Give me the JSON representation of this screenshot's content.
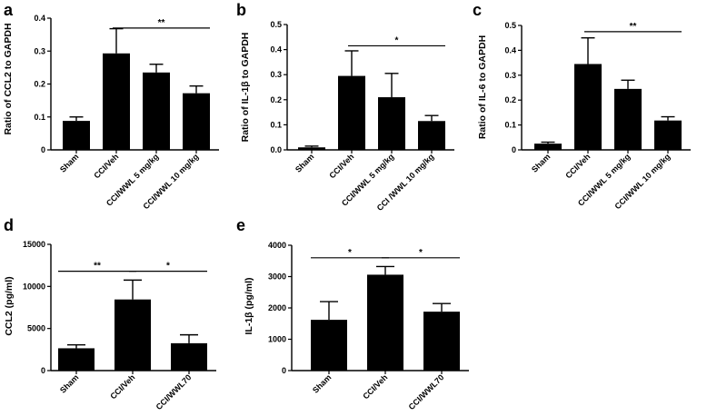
{
  "chart_data": [
    {
      "id": "a",
      "type": "bar",
      "panel_label": "a",
      "ylabel": "Ratio of CCL2 to GAPDH",
      "categories": [
        "Sham",
        "CCI/Veh",
        "CCI/WWL 5 mg/kg",
        "CCI/WWL 10 mg/kg"
      ],
      "values": [
        0.088,
        0.293,
        0.235,
        0.172
      ],
      "errors": [
        0.012,
        0.075,
        0.025,
        0.022
      ],
      "ylim": [
        0,
        0.4
      ],
      "yticks": [
        0,
        0.1,
        0.2,
        0.3,
        0.4
      ],
      "ytick_labels": [
        "0",
        "0.1",
        "0.2",
        "0.3",
        "0.4"
      ],
      "bar_color": "#000000",
      "significance": [
        {
          "from": 1,
          "to": 3,
          "label": "**",
          "y": 0.37
        }
      ]
    },
    {
      "id": "b",
      "type": "bar",
      "panel_label": "b",
      "ylabel": "Ratio of IL-1β to GAPDH",
      "categories": [
        "Sham",
        "CCI/Veh",
        "CCI/WWL 5 mg/kg",
        "CCI /WWL 10 mg/kg"
      ],
      "values": [
        0.01,
        0.295,
        0.21,
        0.115
      ],
      "errors": [
        0.005,
        0.1,
        0.095,
        0.022
      ],
      "ylim": [
        0,
        0.5
      ],
      "yticks": [
        0,
        0.1,
        0.2,
        0.3,
        0.4,
        0.5
      ],
      "ytick_labels": [
        "0.0",
        "0.1",
        "0.2",
        "0.3",
        "0.4",
        "0.5"
      ],
      "bar_color": "#000000",
      "significance": [
        {
          "from": 1,
          "to": 3,
          "label": "*",
          "y": 0.415
        }
      ]
    },
    {
      "id": "c",
      "type": "bar",
      "panel_label": "c",
      "ylabel": "Ratio of IL-6 to GAPDH",
      "categories": [
        "Sham",
        "CCI/Veh",
        "CCI/WWL 5 mg/kg",
        "CCI/WWL 10 mg/kg"
      ],
      "values": [
        0.025,
        0.345,
        0.245,
        0.118
      ],
      "errors": [
        0.006,
        0.105,
        0.035,
        0.015
      ],
      "ylim": [
        0,
        0.5
      ],
      "yticks": [
        0,
        0.1,
        0.2,
        0.3,
        0.4,
        0.5
      ],
      "ytick_labels": [
        "0",
        "0.1",
        "0.2",
        "0.3",
        "0.4",
        "0.5"
      ],
      "bar_color": "#000000",
      "significance": [
        {
          "from": 1,
          "to": 3,
          "label": "**",
          "y": 0.475
        }
      ]
    },
    {
      "id": "d",
      "type": "bar",
      "panel_label": "d",
      "ylabel": "CCL2 (pg/ml)",
      "categories": [
        "Sham",
        "CCI/Veh",
        "CCI/WWL70"
      ],
      "values": [
        2650,
        8450,
        3250
      ],
      "errors": [
        400,
        2300,
        1000
      ],
      "ylim": [
        0,
        15000
      ],
      "yticks": [
        0,
        5000,
        10000,
        15000
      ],
      "ytick_labels": [
        "0",
        "5000",
        "10000",
        "15000"
      ],
      "bar_color": "#000000",
      "significance": [
        {
          "from": 0,
          "to": 1,
          "label": "**",
          "y": 11800
        },
        {
          "from": 1,
          "to": 2,
          "label": "*",
          "y": 11800
        }
      ]
    },
    {
      "id": "e",
      "type": "bar",
      "panel_label": "e",
      "ylabel": "IL-1β  (pg/ml)",
      "categories": [
        "Sham",
        "CCI/Veh",
        "CCI/WWL70"
      ],
      "values": [
        1620,
        3060,
        1880
      ],
      "errors": [
        580,
        260,
        260
      ],
      "ylim": [
        0,
        4000
      ],
      "yticks": [
        0,
        1000,
        2000,
        3000,
        4000
      ],
      "ytick_labels": [
        "0",
        "1000",
        "2000",
        "3000",
        "4000"
      ],
      "bar_color": "#000000",
      "significance": [
        {
          "from": 0,
          "to": 1,
          "label": "*",
          "y": 3600
        },
        {
          "from": 1,
          "to": 2,
          "label": "*",
          "y": 3600
        }
      ]
    }
  ]
}
